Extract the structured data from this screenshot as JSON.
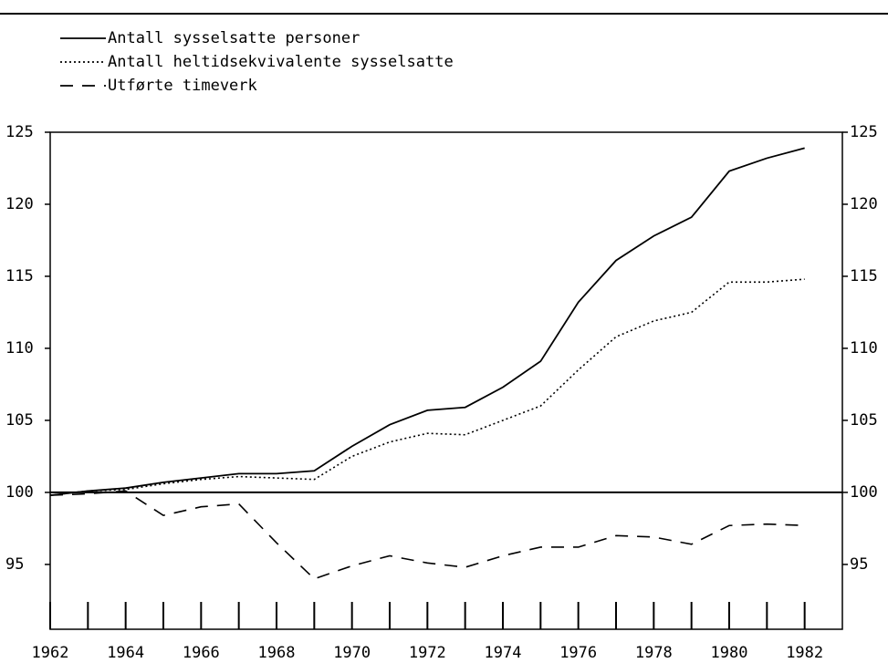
{
  "chart_data": {
    "type": "line",
    "x": [
      1962,
      1963,
      1964,
      1965,
      1966,
      1967,
      1968,
      1969,
      1970,
      1971,
      1972,
      1973,
      1974,
      1975,
      1976,
      1977,
      1978,
      1979,
      1980,
      1981,
      1982
    ],
    "series": [
      {
        "name": "Antall sysselsatte personer",
        "color": "#000000",
        "style": "solid",
        "values": [
          99.8,
          100.1,
          100.3,
          100.7,
          101.0,
          101.3,
          101.3,
          101.5,
          103.2,
          104.7,
          105.7,
          105.9,
          107.3,
          109.1,
          113.2,
          116.1,
          117.8,
          119.1,
          122.3,
          123.2,
          123.9
        ]
      },
      {
        "name": "Antall heltidsekvivalente sysselsatte",
        "color": "#000000",
        "style": "dotted",
        "values": [
          99.8,
          100.1,
          100.2,
          100.6,
          100.9,
          101.1,
          101.0,
          100.9,
          102.5,
          103.5,
          104.1,
          104.0,
          105.0,
          106.0,
          108.5,
          110.8,
          111.9,
          112.5,
          114.6,
          114.6,
          114.8
        ]
      },
      {
        "name": "Utførte timeverk",
        "color": "#000000",
        "style": "dashed",
        "values": [
          99.8,
          99.9,
          100.1,
          98.4,
          99.0,
          99.2,
          96.5,
          94.0,
          94.9,
          95.6,
          95.1,
          94.8,
          95.6,
          96.2,
          96.2,
          97.0,
          96.9,
          96.4,
          97.7,
          97.8,
          97.7
        ]
      }
    ],
    "xlim": [
      1962,
      1983
    ],
    "ylim": [
      90.5,
      125
    ],
    "xticks": [
      1962,
      1964,
      1966,
      1968,
      1970,
      1972,
      1974,
      1976,
      1978,
      1980,
      1982
    ],
    "xminorticks": [
      1963,
      1965,
      1967,
      1969,
      1971,
      1973,
      1975,
      1977,
      1979,
      1981
    ],
    "yticks": [
      95,
      100,
      105,
      110,
      115,
      120,
      125
    ],
    "reference_line": 100,
    "right_axis_labels": true
  }
}
